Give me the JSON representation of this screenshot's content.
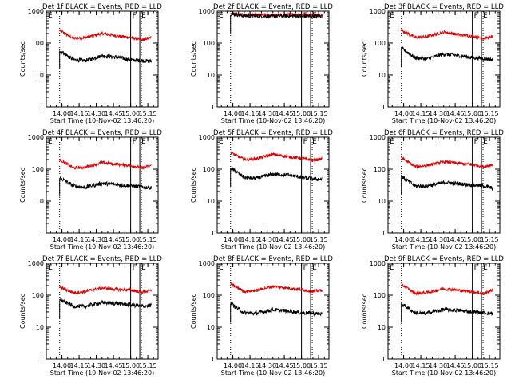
{
  "colors": {
    "events": "#000000",
    "lld": "#e00000",
    "axes": "#000000",
    "background": "#ffffff"
  },
  "y_ticks": [
    "1",
    "10",
    "100",
    "1000"
  ],
  "x_ticks": [
    "14:00",
    "14:15",
    "14:30",
    "14:45",
    "15:00",
    "15:15"
  ],
  "y_label": "Counts/sec",
  "x_label": "Start Time (10-Nov-02 13:46:20)",
  "markers": [
    {
      "label": "F",
      "time": "15:00",
      "style": "solid"
    },
    {
      "label": "E",
      "time": "15:08",
      "style": "solid"
    }
  ],
  "dotted_time": "13:58",
  "chart_data": [
    {
      "type": "line",
      "title": "Det 1f BLACK = Events, RED = LLD",
      "yscale": "log",
      "ylim": [
        1,
        1000
      ],
      "xlabel": "Start Time (10-Nov-02 13:46:20)",
      "ylabel": "Counts/sec",
      "xlim": [
        "13:46:20",
        "15:24"
      ],
      "x": [
        "13:58",
        "14:10",
        "14:20",
        "14:35",
        "14:50",
        "15:00",
        "15:10",
        "15:18"
      ],
      "series": [
        {
          "name": "RED = LLD",
          "values": [
            250,
            140,
            150,
            200,
            165,
            150,
            125,
            150
          ]
        },
        {
          "name": "BLACK = Events",
          "values": [
            60,
            30,
            28,
            40,
            35,
            30,
            28,
            27
          ]
        }
      ]
    },
    {
      "type": "line",
      "title": "Det 2f BLACK = Events, RED = LLD",
      "yscale": "log",
      "ylim": [
        1,
        1000
      ],
      "xlabel": "Start Time (10-Nov-02 13:46:20)",
      "ylabel": "Counts/sec",
      "xlim": [
        "13:46:20",
        "15:24"
      ],
      "x": [
        "13:58",
        "14:10",
        "14:20",
        "14:35",
        "14:50",
        "15:00",
        "15:10",
        "15:18"
      ],
      "series": [
        {
          "name": "RED = LLD",
          "values": [
            850,
            760,
            760,
            740,
            780,
            780,
            760,
            770
          ]
        },
        {
          "name": "BLACK = Events",
          "values": [
            840,
            720,
            700,
            690,
            720,
            700,
            700,
            690
          ]
        }
      ]
    },
    {
      "type": "line",
      "title": "Det 3f BLACK = Events, RED = LLD",
      "yscale": "log",
      "ylim": [
        1,
        1000
      ],
      "xlabel": "Start Time (10-Nov-02 13:46:20)",
      "ylabel": "Counts/sec",
      "xlim": [
        "13:46:20",
        "15:24"
      ],
      "x": [
        "13:58",
        "14:10",
        "14:20",
        "14:35",
        "14:50",
        "15:00",
        "15:10",
        "15:18"
      ],
      "series": [
        {
          "name": "RED = LLD",
          "values": [
            260,
            150,
            160,
            220,
            180,
            165,
            140,
            160
          ]
        },
        {
          "name": "BLACK = Events",
          "values": [
            70,
            35,
            32,
            45,
            40,
            35,
            33,
            30
          ]
        }
      ]
    },
    {
      "type": "line",
      "title": "Det 4f BLACK = Events, RED = LLD",
      "yscale": "log",
      "ylim": [
        1,
        1000
      ],
      "xlabel": "Start Time (10-Nov-02 13:46:20)",
      "ylabel": "Counts/sec",
      "xlim": [
        "13:46:20",
        "15:24"
      ],
      "x": [
        "13:58",
        "14:10",
        "14:20",
        "14:35",
        "14:50",
        "15:00",
        "15:10",
        "15:18"
      ],
      "series": [
        {
          "name": "RED = LLD",
          "values": [
            200,
            110,
            115,
            160,
            140,
            130,
            110,
            130
          ]
        },
        {
          "name": "BLACK = Events",
          "values": [
            55,
            30,
            27,
            36,
            33,
            30,
            28,
            26
          ]
        }
      ]
    },
    {
      "type": "line",
      "title": "Det 5f BLACK = Events, RED = LLD",
      "yscale": "log",
      "ylim": [
        1,
        1000
      ],
      "xlabel": "Start Time (10-Nov-02 13:46:20)",
      "ylabel": "Counts/sec",
      "xlim": [
        "13:46:20",
        "15:24"
      ],
      "x": [
        "13:58",
        "14:10",
        "14:20",
        "14:35",
        "14:50",
        "15:00",
        "15:10",
        "15:18"
      ],
      "series": [
        {
          "name": "RED = LLD",
          "values": [
            330,
            200,
            210,
            290,
            240,
            220,
            190,
            210
          ]
        },
        {
          "name": "BLACK = Events",
          "values": [
            110,
            55,
            52,
            70,
            65,
            55,
            50,
            48
          ]
        }
      ]
    },
    {
      "type": "line",
      "title": "Det 6f BLACK = Events, RED = LLD",
      "yscale": "log",
      "ylim": [
        1,
        1000
      ],
      "xlabel": "Start Time (10-Nov-02 13:46:20)",
      "ylabel": "Counts/sec",
      "xlim": [
        "13:46:20",
        "15:24"
      ],
      "x": [
        "13:58",
        "14:10",
        "14:20",
        "14:35",
        "14:50",
        "15:00",
        "15:10",
        "15:18"
      ],
      "series": [
        {
          "name": "RED = LLD",
          "values": [
            230,
            120,
            130,
            170,
            150,
            140,
            120,
            140
          ]
        },
        {
          "name": "BLACK = Events",
          "values": [
            60,
            30,
            30,
            38,
            35,
            32,
            30,
            25
          ]
        }
      ]
    },
    {
      "type": "line",
      "title": "Det 7f BLACK = Events, RED = LLD",
      "yscale": "log",
      "ylim": [
        1,
        1000
      ],
      "xlabel": "Start Time (10-Nov-02 13:46:20)",
      "ylabel": "Counts/sec",
      "xlim": [
        "13:46:20",
        "15:24"
      ],
      "x": [
        "13:58",
        "14:10",
        "14:20",
        "14:35",
        "14:50",
        "15:00",
        "15:10",
        "15:18"
      ],
      "series": [
        {
          "name": "RED = LLD",
          "values": [
            180,
            120,
            130,
            170,
            150,
            145,
            125,
            140
          ]
        },
        {
          "name": "BLACK = Events",
          "values": [
            75,
            45,
            45,
            58,
            55,
            50,
            45,
            48
          ]
        }
      ]
    },
    {
      "type": "line",
      "title": "Det 8f BLACK = Events, RED = LLD",
      "yscale": "log",
      "ylim": [
        1,
        1000
      ],
      "xlabel": "Start Time (10-Nov-02 13:46:20)",
      "ylabel": "Counts/sec",
      "xlim": [
        "13:46:20",
        "15:24"
      ],
      "x": [
        "13:58",
        "14:10",
        "14:20",
        "14:35",
        "14:50",
        "15:00",
        "15:10",
        "15:18"
      ],
      "series": [
        {
          "name": "RED = LLD",
          "values": [
            230,
            130,
            140,
            190,
            165,
            150,
            130,
            145
          ]
        },
        {
          "name": "BLACK = Events",
          "values": [
            55,
            28,
            27,
            35,
            32,
            28,
            27,
            26
          ]
        }
      ]
    },
    {
      "type": "line",
      "title": "Det 9f BLACK = Events, RED = LLD",
      "yscale": "log",
      "ylim": [
        1,
        1000
      ],
      "xlabel": "Start Time (10-Nov-02 13:46:20)",
      "ylabel": "Counts/sec",
      "xlim": [
        "13:46:20",
        "15:24"
      ],
      "x": [
        "13:58",
        "14:10",
        "14:20",
        "14:35",
        "14:50",
        "15:00",
        "15:10",
        "15:18"
      ],
      "series": [
        {
          "name": "RED = LLD",
          "values": [
            220,
            115,
            120,
            160,
            140,
            130,
            110,
            150
          ]
        },
        {
          "name": "BLACK = Events",
          "values": [
            55,
            28,
            27,
            36,
            33,
            30,
            28,
            27
          ]
        }
      ]
    }
  ]
}
